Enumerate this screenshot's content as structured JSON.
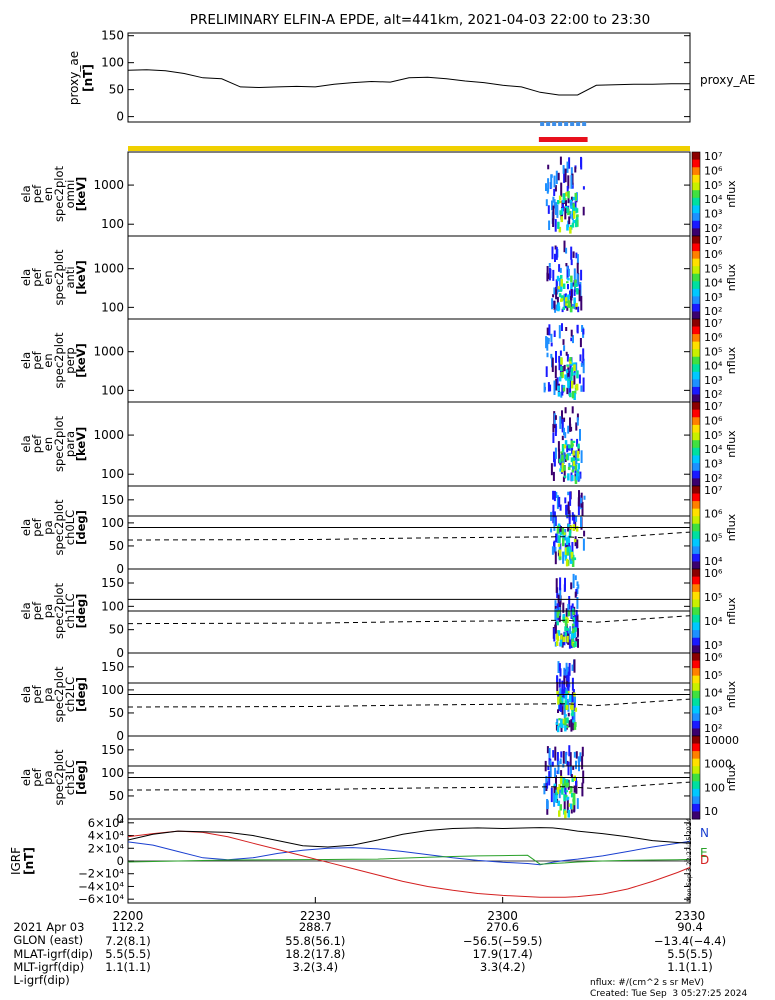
{
  "title": "PRELIMINARY ELFIN-A EPDE, alt=441km, 2021-04-03 22:00 to 23:30",
  "colorbar": {
    "unit_label": "nflux"
  },
  "colors": {
    "ae_line": "#000000",
    "bar_blue": "#3d8ee8",
    "bar_red": "#e8101c",
    "bar_yellow": "#f0d000",
    "N": "#1a3fd0",
    "E": "#2aa12a",
    "D": "#d42020",
    "dashed": "#000000"
  },
  "chart_data": [
    {
      "type": "line",
      "panel": "proxy_ae",
      "ylabel": "proxy_ae",
      "yunit": "[nT]",
      "side_label": "proxy_AE",
      "ylim": [
        -10,
        155
      ],
      "yticks": [
        0,
        50,
        100,
        150
      ],
      "x_minutes": [
        0,
        3,
        6,
        9,
        12,
        15,
        18,
        21,
        24,
        27,
        30,
        33,
        36,
        39,
        42,
        45,
        48,
        51,
        54,
        57,
        60,
        63,
        66,
        69,
        72,
        75,
        78,
        81,
        84,
        87,
        90
      ],
      "values": [
        86,
        87,
        85,
        80,
        72,
        70,
        55,
        54,
        55,
        56,
        55,
        60,
        63,
        65,
        64,
        72,
        73,
        70,
        66,
        63,
        58,
        55,
        45,
        40,
        40,
        58,
        59,
        60,
        60,
        61,
        61
      ]
    },
    {
      "type": "line",
      "panel": "status_bars",
      "bars": [
        {
          "name": "blue",
          "x_minutes": [
            66.0,
            73.0
          ]
        },
        {
          "name": "red",
          "x_minutes": [
            65.8,
            73.6
          ]
        },
        {
          "name": "yellow",
          "x_minutes": [
            0,
            90
          ]
        }
      ]
    },
    {
      "type": "heatmap",
      "panel": "energy_omni",
      "ylabel_lines": [
        "ela",
        "pef",
        "en",
        "spec2plot",
        "omni"
      ],
      "yunit": "[keV]",
      "yscale": "log",
      "ylim": [
        50,
        7000
      ],
      "yticks": [
        100,
        1000
      ],
      "yticklabels": [
        "100",
        "1000"
      ],
      "zticklabels": [
        "10⁷",
        "10⁶",
        "10⁵",
        "10⁴",
        "10³",
        "10²"
      ],
      "zunit": "nflux",
      "active_x_minutes": [
        66.5,
        73.0
      ]
    },
    {
      "type": "heatmap",
      "panel": "energy_anti",
      "ylabel_lines": [
        "ela",
        "pef",
        "en",
        "spec2plot",
        "anti"
      ],
      "yunit": "[keV]",
      "yscale": "log",
      "ylim": [
        50,
        7000
      ],
      "yticks": [
        100,
        1000
      ],
      "yticklabels": [
        "100",
        "1000"
      ],
      "zticklabels": [
        "10⁷",
        "10⁶",
        "10⁵",
        "10⁴",
        "10³",
        "10²"
      ],
      "zunit": "nflux",
      "active_x_minutes": [
        67.0,
        72.5
      ]
    },
    {
      "type": "heatmap",
      "panel": "energy_perp",
      "ylabel_lines": [
        "ela",
        "pef",
        "en",
        "spec2plot",
        "perp"
      ],
      "yunit": "[keV]",
      "yscale": "log",
      "ylim": [
        50,
        7000
      ],
      "yticks": [
        100,
        1000
      ],
      "yticklabels": [
        "100",
        "1000"
      ],
      "zticklabels": [
        "10⁷",
        "10⁶",
        "10⁵",
        "10⁴",
        "10³",
        "10²"
      ],
      "zunit": "nflux",
      "active_x_minutes": [
        66.5,
        73.0
      ]
    },
    {
      "type": "heatmap",
      "panel": "energy_para",
      "ylabel_lines": [
        "ela",
        "pef",
        "en",
        "spec2plot",
        "para"
      ],
      "yunit": "[keV]",
      "yscale": "log",
      "ylim": [
        50,
        7000
      ],
      "yticks": [
        100,
        1000
      ],
      "yticklabels": [
        "100",
        "1000"
      ],
      "zticklabels": [
        "10⁷",
        "10⁶",
        "10⁵",
        "10⁴",
        "10³",
        "10²"
      ],
      "zunit": "nflux",
      "active_x_minutes": [
        67.5,
        72.5
      ]
    },
    {
      "type": "heatmap",
      "panel": "pa_ch0",
      "ylabel_lines": [
        "ela",
        "pef",
        "pa",
        "spec2plot",
        "ch0LC"
      ],
      "yunit": "[deg]",
      "ylim": [
        0,
        180
      ],
      "yticks": [
        0,
        50,
        100,
        150
      ],
      "yticklabels": [
        "0",
        "50",
        "100",
        "150"
      ],
      "refs": [
        90,
        115
      ],
      "loss_cone": {
        "x_minutes": [
          0,
          30,
          45,
          70,
          75,
          90
        ],
        "values": [
          63,
          64,
          67,
          70,
          66,
          80
        ]
      },
      "zticklabels": [
        "10⁷",
        "10⁶",
        "10⁵",
        "10⁴"
      ],
      "zunit": "nflux",
      "active_x_minutes": [
        67.5,
        73.0
      ]
    },
    {
      "type": "heatmap",
      "panel": "pa_ch1",
      "ylabel_lines": [
        "ela",
        "pef",
        "pa",
        "spec2plot",
        "ch1LC"
      ],
      "yunit": "[deg]",
      "ylim": [
        0,
        180
      ],
      "yticks": [
        0,
        50,
        100,
        150
      ],
      "yticklabels": [
        "0",
        "50",
        "100",
        "150"
      ],
      "refs": [
        90,
        115
      ],
      "loss_cone": {
        "x_minutes": [
          0,
          30,
          45,
          70,
          75,
          90
        ],
        "values": [
          63,
          64,
          67,
          70,
          66,
          80
        ]
      },
      "zticklabels": [
        "10⁶",
        "10⁵",
        "10⁴",
        "10³"
      ],
      "zunit": "nflux",
      "active_x_minutes": [
        68.0,
        72.0
      ]
    },
    {
      "type": "heatmap",
      "panel": "pa_ch2",
      "ylabel_lines": [
        "ela",
        "pef",
        "pa",
        "spec2plot",
        "ch2LC"
      ],
      "yunit": "[deg]",
      "ylim": [
        0,
        180
      ],
      "yticks": [
        0,
        50,
        100,
        150
      ],
      "yticklabels": [
        "0",
        "50",
        "100",
        "150"
      ],
      "refs": [
        90,
        115
      ],
      "loss_cone": {
        "x_minutes": [
          0,
          30,
          45,
          70,
          75,
          90
        ],
        "values": [
          63,
          64,
          67,
          70,
          66,
          80
        ]
      },
      "zticklabels": [
        "10⁶",
        "10⁵",
        "10⁴",
        "10³",
        "10²"
      ],
      "zunit": "nflux",
      "active_x_minutes": [
        68.5,
        71.5
      ]
    },
    {
      "type": "heatmap",
      "panel": "pa_ch3",
      "ylabel_lines": [
        "ela",
        "pef",
        "pa",
        "spec2plot",
        "ch3LC"
      ],
      "yunit": "[deg]",
      "ylim": [
        0,
        180
      ],
      "yticks": [
        0,
        50,
        100,
        150
      ],
      "yticklabels": [
        "0",
        "50",
        "100",
        "150"
      ],
      "refs": [
        90,
        115
      ],
      "loss_cone": {
        "x_minutes": [
          0,
          30,
          45,
          70,
          75,
          90
        ],
        "values": [
          63,
          64,
          67,
          70,
          66,
          80
        ]
      },
      "zticklabels": [
        "10000",
        "1000",
        "100",
        "10"
      ],
      "zunit": "nflux",
      "active_x_minutes": [
        66.5,
        73.0
      ]
    },
    {
      "type": "line",
      "panel": "igrf",
      "ylabel": "IGRF",
      "yunit": "[nT]",
      "ylim": [
        -66000,
        66000
      ],
      "yticks": [
        -60000,
        -40000,
        -20000,
        0,
        20000,
        40000,
        60000
      ],
      "yticklabels": [
        "−6×10⁴",
        "−4×10⁴",
        "−2×10⁴",
        "0",
        "2×10⁴",
        "4×10⁴",
        "6×10⁴"
      ],
      "x_minutes": [
        0,
        4,
        8,
        12,
        16,
        20,
        24,
        28,
        32,
        36,
        40,
        44,
        48,
        52,
        56,
        60,
        64,
        66,
        68,
        70,
        72,
        76,
        80,
        84,
        88,
        90
      ],
      "series": [
        {
          "name": "N",
          "color": "#1a3fd0",
          "values": [
            30000,
            25000,
            15000,
            5000,
            2000,
            5000,
            12000,
            17000,
            20000,
            21000,
            19000,
            15000,
            10000,
            5000,
            1000,
            -2000,
            -4000,
            -6000,
            -2000,
            1000,
            3000,
            8000,
            15000,
            22000,
            28000,
            31000
          ]
        },
        {
          "name": "E",
          "color": "#2aa12a",
          "values": [
            -1500,
            -800,
            0,
            800,
            1500,
            1800,
            2000,
            2200,
            2400,
            2600,
            3000,
            4500,
            6000,
            7000,
            8000,
            8500,
            9000,
            -5000,
            -4000,
            -3000,
            -1500,
            0,
            1000,
            1500,
            2000,
            2500
          ]
        },
        {
          "name": "D",
          "color": "#d42020",
          "values": [
            38000,
            43000,
            47000,
            45000,
            38000,
            28000,
            18000,
            8000,
            -2000,
            -12000,
            -22000,
            -32000,
            -40000,
            -46000,
            -51000,
            -54000,
            -56000,
            -57000,
            -57000,
            -57000,
            -56000,
            -52000,
            -44000,
            -32000,
            -18000,
            -10000
          ]
        },
        {
          "name": "total",
          "color": "#000000",
          "values": [
            33000,
            42000,
            47000,
            46000,
            45000,
            40000,
            32000,
            24000,
            22000,
            25000,
            33000,
            42000,
            48000,
            51000,
            52000,
            51000,
            52000,
            52500,
            52000,
            50000,
            47000,
            43000,
            38000,
            32000,
            29000,
            28000
          ]
        }
      ],
      "axis_right_text": "Mon Sep 3 22:27:25 2024"
    }
  ],
  "xaxis": {
    "ticks": [
      {
        "minutes": 0,
        "label": "2200"
      },
      {
        "minutes": 30,
        "label": "2230"
      },
      {
        "minutes": 60,
        "label": "2300"
      },
      {
        "minutes": 90,
        "label": "2330"
      }
    ]
  },
  "footer": {
    "rows": [
      {
        "label": "2021 Apr 03",
        "values": [
          "2200",
          "",
          "",
          ""
        ]
      },
      {
        "label": "GLON (east)",
        "values": [
          "112.2",
          "288.7",
          "270.6",
          "90.4"
        ]
      },
      {
        "label": "MLAT-igrf(dip)",
        "values": [
          "7.2(8.1)",
          "55.8(56.1)",
          "−56.5(−59.5)",
          "−13.4(−4.4)"
        ]
      },
      {
        "label": "MLT-igrf(dip)",
        "values": [
          "5.5(5.5)",
          "18.2(17.8)",
          "17.9(17.4)",
          "5.5(5.5)"
        ]
      },
      {
        "label": "L-igrf(dip)",
        "values": [
          "1.1(1.1)",
          "3.2(3.4)",
          "3.3(4.2)",
          "1.1(1.1)"
        ]
      }
    ],
    "credit_line1": "nflux: #/(cm^2 s sr MeV)",
    "credit_line2": "Created: Tue Sep  3 05:27:25 2024"
  }
}
